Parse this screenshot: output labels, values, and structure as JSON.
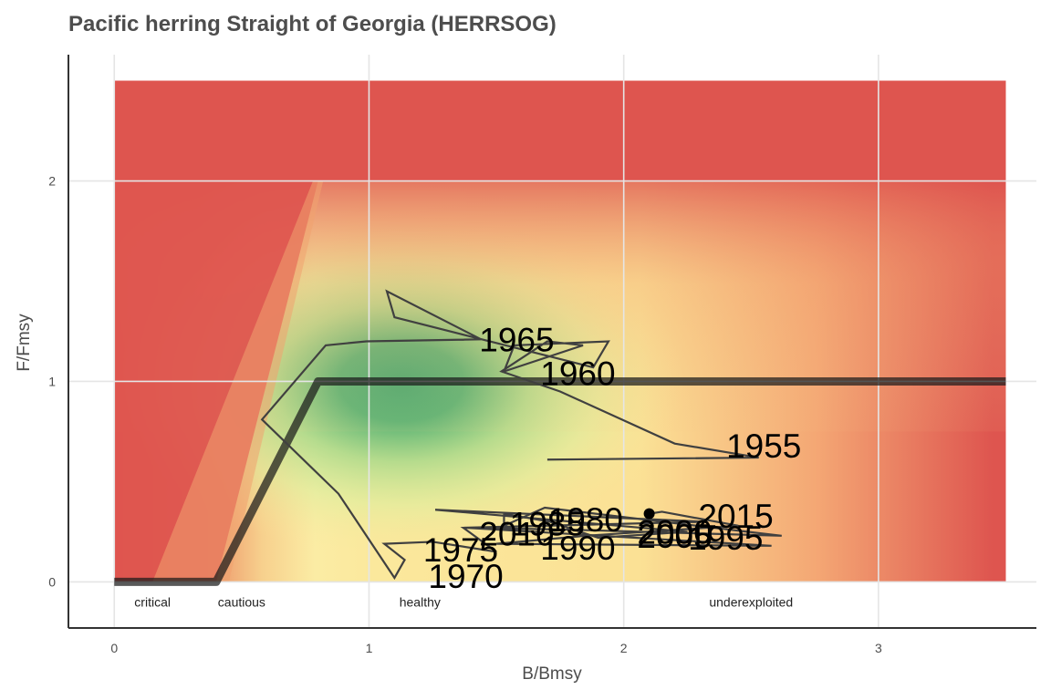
{
  "chart_data": {
    "type": "line",
    "title": "Pacific herring Straight of Georgia (HERRSOG)",
    "xlabel": "B/Bmsy",
    "ylabel": "F/Fmsy",
    "xlim": [
      -0.18,
      3.62
    ],
    "ylim": [
      -0.23,
      2.63
    ],
    "x_ticks": [
      0,
      1,
      2,
      3
    ],
    "y_ticks": [
      0,
      1,
      2
    ],
    "grid": true,
    "background": {
      "type": "status-colored heatmap",
      "x_range": [
        0,
        3.5
      ],
      "y_range": [
        0,
        2.5
      ],
      "colors": {
        "red": "#de554f",
        "orange": "#f2a06e",
        "yellow": "#fbe89c",
        "light_green": "#d9ee9c",
        "green": "#3ea56d"
      }
    },
    "zones": [
      {
        "label": "critical",
        "x": 0.15
      },
      {
        "label": "cautious",
        "x": 0.5
      },
      {
        "label": "healthy",
        "x": 1.2
      },
      {
        "label": "underexploited",
        "x": 2.5
      }
    ],
    "reference_line": {
      "x": [
        0,
        0.4,
        0.8,
        3.5
      ],
      "y": [
        0,
        0,
        1,
        1
      ],
      "color": "#1a1a1a"
    },
    "trajectory": {
      "color": "#404040",
      "x": [
        1.7,
        2.53,
        2.2,
        1.75,
        1.52,
        1.7,
        1.84,
        1.53,
        1.57,
        1.94,
        1.88,
        1.1,
        1.07,
        1.44,
        0.99,
        0.83,
        0.58,
        0.88,
        1.1,
        1.14,
        1.06,
        1.25,
        1.5,
        1.37,
        2.32,
        1.26,
        2.25,
        1.9,
        1.71,
        1.53,
        1.53,
        1.69,
        2.62,
        1.8,
        1.38,
        2.58,
        1.5,
        1.85,
        2.45,
        2.15,
        2.1
      ],
      "y": [
        0.61,
        0.62,
        0.69,
        0.95,
        1.05,
        1.2,
        1.18,
        1.05,
        1.18,
        1.2,
        1.07,
        1.32,
        1.45,
        1.21,
        1.2,
        1.18,
        0.81,
        0.44,
        0.02,
        0.11,
        0.19,
        0.2,
        0.15,
        0.27,
        0.3,
        0.36,
        0.25,
        0.22,
        0.3,
        0.34,
        0.28,
        0.37,
        0.23,
        0.26,
        0.27,
        0.18,
        0.19,
        0.23,
        0.28,
        0.35,
        0.34
      ]
    },
    "current_point": {
      "x": 2.1,
      "y": 0.34
    },
    "year_labels": [
      {
        "text": "1955",
        "x": 2.55,
        "y": 0.68
      },
      {
        "text": "1960",
        "x": 1.82,
        "y": 1.04
      },
      {
        "text": "1965",
        "x": 1.58,
        "y": 1.21
      },
      {
        "text": "1970",
        "x": 1.38,
        "y": 0.03
      },
      {
        "text": "1975",
        "x": 1.36,
        "y": 0.16
      },
      {
        "text": "1980",
        "x": 1.85,
        "y": 0.31
      },
      {
        "text": "1985",
        "x": 1.7,
        "y": 0.29
      },
      {
        "text": "1990",
        "x": 1.82,
        "y": 0.17
      },
      {
        "text": "1995",
        "x": 2.4,
        "y": 0.22
      },
      {
        "text": "2000",
        "x": 2.2,
        "y": 0.25
      },
      {
        "text": "2005",
        "x": 2.2,
        "y": 0.23
      },
      {
        "text": "2010",
        "x": 1.58,
        "y": 0.24
      },
      {
        "text": "2015",
        "x": 2.44,
        "y": 0.33
      }
    ]
  }
}
